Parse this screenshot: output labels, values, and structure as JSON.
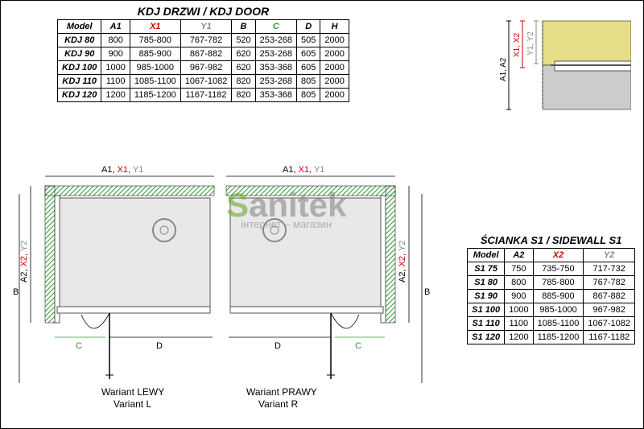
{
  "kdj": {
    "title": "KDJ DRZWI / KDJ DOOR",
    "headers": [
      "Model",
      "A1",
      "X1",
      "Y1",
      "B",
      "C",
      "D",
      "H"
    ],
    "header_colors": [
      "#000",
      "#000",
      "#cc0000",
      "#888",
      "#000",
      "#339933",
      "#000",
      "#000"
    ],
    "rows": [
      [
        "KDJ 80",
        "800",
        "785-800",
        "767-782",
        "520",
        "253-268",
        "505",
        "2000"
      ],
      [
        "KDJ 90",
        "900",
        "885-900",
        "867-882",
        "620",
        "253-268",
        "605",
        "2000"
      ],
      [
        "KDJ 100",
        "1000",
        "985-1000",
        "967-982",
        "620",
        "353-368",
        "605",
        "2000"
      ],
      [
        "KDJ 110",
        "1100",
        "1085-1100",
        "1067-1082",
        "820",
        "253-268",
        "805",
        "2000"
      ],
      [
        "KDJ 120",
        "1200",
        "1185-1200",
        "1167-1182",
        "820",
        "353-368",
        "805",
        "2000"
      ]
    ]
  },
  "s1": {
    "title": "ŚCIANKA S1 / SIDEWALL S1",
    "headers": [
      "Model",
      "A2",
      "X2",
      "Y2"
    ],
    "header_colors": [
      "#000",
      "#000",
      "#cc0000",
      "#888"
    ],
    "rows": [
      [
        "S1 75",
        "750",
        "735-750",
        "717-732"
      ],
      [
        "S1 80",
        "800",
        "785-800",
        "767-782"
      ],
      [
        "S1 90",
        "900",
        "885-900",
        "867-882"
      ],
      [
        "S1 100",
        "1000",
        "985-1000",
        "967-982"
      ],
      [
        "S1 110",
        "1100",
        "1085-1100",
        "1067-1082"
      ],
      [
        "S1 120",
        "1200",
        "1185-1200",
        "1167-1182"
      ]
    ]
  },
  "corner": {
    "labels": {
      "a12": "A1, A2",
      "x12": "X1, X2",
      "y12": "Y1, Y2"
    },
    "colors": {
      "wall": "#e8dd88",
      "panel": "#bbb",
      "line_a": "#000",
      "line_x": "#cc0000",
      "line_y": "#888"
    }
  },
  "diagram": {
    "top_label_a": "A1,",
    "top_label_x": "X1,",
    "top_label_y": "Y1",
    "side_label_a": "A2,",
    "side_label_x": "X2,",
    "side_label_y": "Y2",
    "b": "B",
    "c": "C",
    "d": "D",
    "variant_l_top": "Wariant LEWY",
    "variant_l_bot": "Variant L",
    "variant_r_top": "Wariant PRAWY",
    "variant_r_bot": "Variant R",
    "hatch": "#339933",
    "outline": "#000"
  },
  "watermark": {
    "text_pre": "S",
    "text_post": "anitek",
    "tagline": "інтернет – магазин"
  }
}
